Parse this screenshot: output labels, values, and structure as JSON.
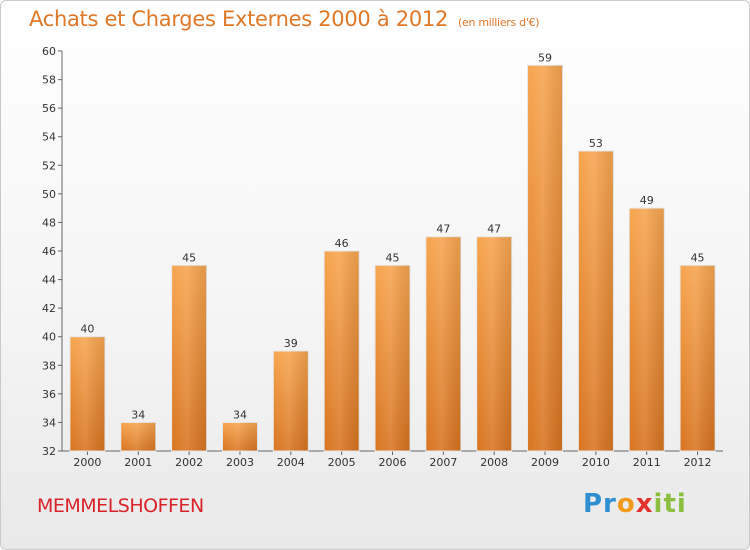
{
  "header": {
    "title": "Achats et Charges Externes 2000 à 2012",
    "unit": "(en milliers d'€)"
  },
  "footer": {
    "city": "MEMMELSHOFFEN",
    "logo_parts": [
      "Pr",
      "o",
      "x",
      "iti"
    ]
  },
  "colors": {
    "bar_top": "#f7a54f",
    "bar_bottom": "#d87420",
    "title": "#e0782a",
    "city": "#d9232a"
  },
  "chart_data": {
    "type": "bar",
    "title": "Achats et Charges Externes 2000 à 2012",
    "subtitle": "(en milliers d'€)",
    "categories": [
      "2000",
      "2001",
      "2002",
      "2003",
      "2004",
      "2005",
      "2006",
      "2007",
      "2008",
      "2009",
      "2010",
      "2011",
      "2012"
    ],
    "values": [
      40,
      34,
      45,
      34,
      39,
      46,
      45,
      47,
      47,
      59,
      53,
      49,
      45
    ],
    "ylim": [
      32,
      60
    ],
    "yticks": [
      32,
      34,
      36,
      38,
      40,
      42,
      44,
      46,
      48,
      50,
      52,
      54,
      56,
      58,
      60
    ],
    "grid": false,
    "legend": "none"
  }
}
